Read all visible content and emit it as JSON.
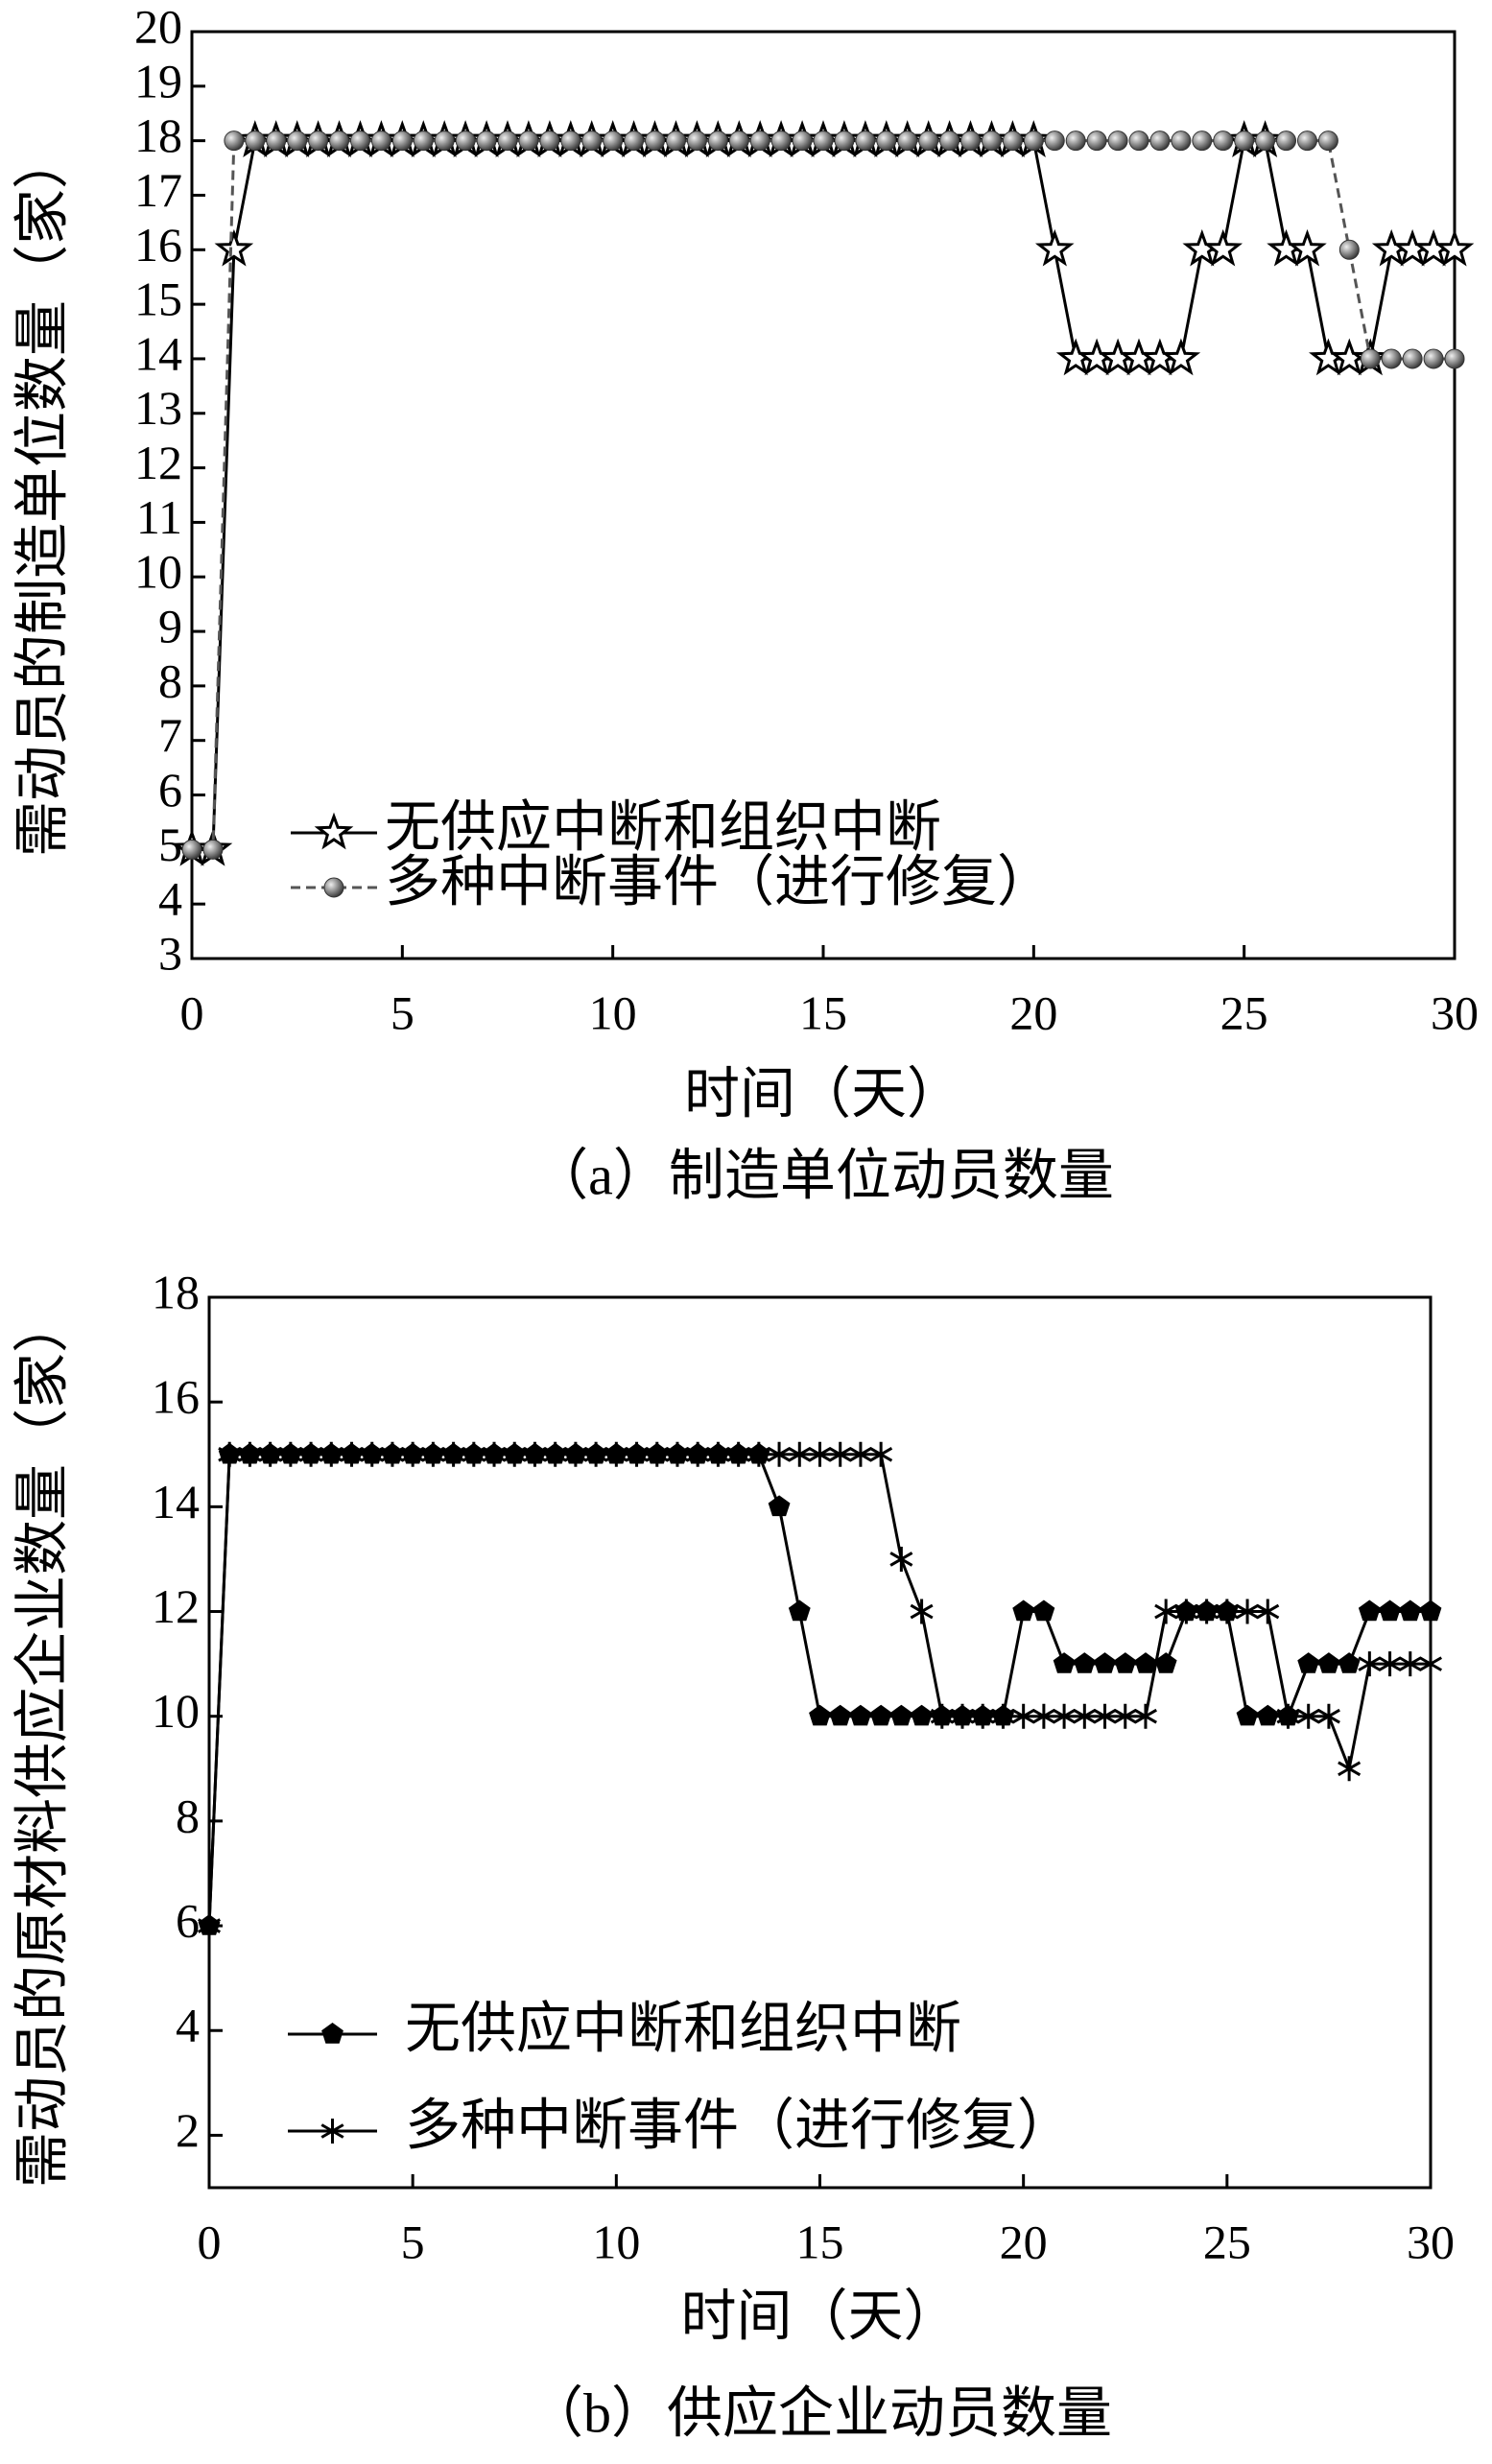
{
  "chart_data": [
    {
      "type": "line",
      "caption": "（a）制造单位动员数量",
      "xlabel": "时间（天）",
      "ylabel": "需动员的制造单位数量（家）",
      "x": [
        0,
        0.5,
        1,
        1.5,
        2,
        2.5,
        3,
        3.5,
        4,
        4.5,
        5,
        5.5,
        6,
        6.5,
        7,
        7.5,
        8,
        8.5,
        9,
        9.5,
        10,
        10.5,
        11,
        11.5,
        12,
        12.5,
        13,
        13.5,
        14,
        14.5,
        15,
        15.5,
        16,
        16.5,
        17,
        17.5,
        18,
        18.5,
        19,
        19.5,
        20,
        20.5,
        21,
        21.5,
        22,
        22.5,
        23,
        23.5,
        24,
        24.5,
        25,
        25.5,
        26,
        26.5,
        27,
        27.5,
        28,
        28.5,
        29,
        29.5,
        30
      ],
      "xlim": [
        0,
        30
      ],
      "xticks": [
        0,
        5,
        10,
        15,
        20,
        25,
        30
      ],
      "ylim": [
        3,
        20
      ],
      "yticks": [
        3,
        4,
        5,
        6,
        7,
        8,
        9,
        10,
        11,
        12,
        13,
        14,
        15,
        16,
        17,
        18,
        19,
        20
      ],
      "series": [
        {
          "name": "无供应中断和组织中断",
          "color": "#000000",
          "marker": "star",
          "dashed": false,
          "values": [
            5,
            5,
            16,
            18,
            18,
            18,
            18,
            18,
            18,
            18,
            18,
            18,
            18,
            18,
            18,
            18,
            18,
            18,
            18,
            18,
            18,
            18,
            18,
            18,
            18,
            18,
            18,
            18,
            18,
            18,
            18,
            18,
            18,
            18,
            18,
            18,
            18,
            18,
            18,
            18,
            18,
            16,
            14,
            14,
            14,
            14,
            14,
            14,
            16,
            16,
            18,
            18,
            16,
            16,
            14,
            14,
            14,
            16,
            16,
            16,
            16
          ]
        },
        {
          "name": "多种中断事件（进行修复）",
          "color": "#555555",
          "marker": "sphere",
          "dashed": true,
          "values": [
            5,
            5,
            18,
            18,
            18,
            18,
            18,
            18,
            18,
            18,
            18,
            18,
            18,
            18,
            18,
            18,
            18,
            18,
            18,
            18,
            18,
            18,
            18,
            18,
            18,
            18,
            18,
            18,
            18,
            18,
            18,
            18,
            18,
            18,
            18,
            18,
            18,
            18,
            18,
            18,
            18,
            18,
            18,
            18,
            18,
            18,
            18,
            18,
            18,
            18,
            18,
            18,
            18,
            18,
            18,
            16,
            14,
            14,
            14,
            14,
            14
          ]
        }
      ]
    },
    {
      "type": "line",
      "caption": "（b）供应企业动员数量",
      "xlabel": "时间（天）",
      "ylabel": "需动员的原材料供应企业数量（家）",
      "x": [
        0,
        0.5,
        1,
        1.5,
        2,
        2.5,
        3,
        3.5,
        4,
        4.5,
        5,
        5.5,
        6,
        6.5,
        7,
        7.5,
        8,
        8.5,
        9,
        9.5,
        10,
        10.5,
        11,
        11.5,
        12,
        12.5,
        13,
        13.5,
        14,
        14.5,
        15,
        15.5,
        16,
        16.5,
        17,
        17.5,
        18,
        18.5,
        19,
        19.5,
        20,
        20.5,
        21,
        21.5,
        22,
        22.5,
        23,
        23.5,
        24,
        24.5,
        25,
        25.5,
        26,
        26.5,
        27,
        27.5,
        28,
        28.5,
        29,
        29.5,
        30
      ],
      "xlim": [
        0,
        30
      ],
      "xticks": [
        0,
        5,
        10,
        15,
        20,
        25,
        30
      ],
      "ylim": [
        1,
        18
      ],
      "yticks": [
        2,
        4,
        6,
        8,
        10,
        12,
        14,
        16,
        18
      ],
      "series": [
        {
          "name": "无供应中断和组织中断",
          "color": "#000000",
          "marker": "pentagon",
          "dashed": false,
          "values": [
            6,
            15,
            15,
            15,
            15,
            15,
            15,
            15,
            15,
            15,
            15,
            15,
            15,
            15,
            15,
            15,
            15,
            15,
            15,
            15,
            15,
            15,
            15,
            15,
            15,
            15,
            15,
            15,
            14,
            12,
            10,
            10,
            10,
            10,
            10,
            10,
            10,
            10,
            10,
            10,
            12,
            12,
            11,
            11,
            11,
            11,
            11,
            11,
            12,
            12,
            12,
            10,
            10,
            10,
            11,
            11,
            11,
            12,
            12,
            12,
            12
          ]
        },
        {
          "name": "多种中断事件（进行修复）",
          "color": "#000000",
          "marker": "asterisk",
          "dashed": false,
          "values": [
            6,
            15,
            15,
            15,
            15,
            15,
            15,
            15,
            15,
            15,
            15,
            15,
            15,
            15,
            15,
            15,
            15,
            15,
            15,
            15,
            15,
            15,
            15,
            15,
            15,
            15,
            15,
            15,
            15,
            15,
            15,
            15,
            15,
            15,
            13,
            12,
            10,
            10,
            10,
            10,
            10,
            10,
            10,
            10,
            10,
            10,
            10,
            12,
            12,
            12,
            12,
            12,
            12,
            10,
            10,
            10,
            9,
            11,
            11,
            11,
            11
          ]
        }
      ]
    }
  ]
}
